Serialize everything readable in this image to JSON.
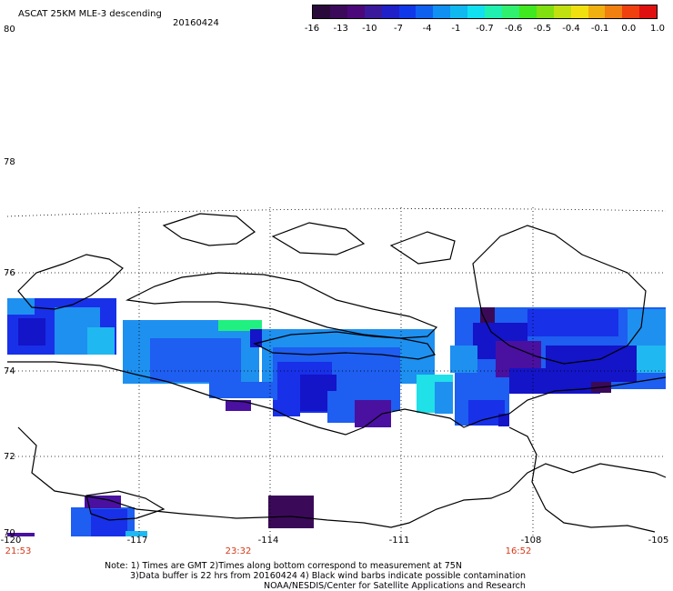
{
  "title": "ASCAT 25KM MLE-3 descending",
  "date": "20160424",
  "colorbar": {
    "colors": [
      "#2a0a3a",
      "#3c0a5a",
      "#4b087a",
      "#3a1a9a",
      "#2020c8",
      "#1038e8",
      "#1060f0",
      "#1090f0",
      "#10b8f0",
      "#10e0f0",
      "#20f0b0",
      "#30f070",
      "#40e820",
      "#80e010",
      "#c0e010",
      "#f0e010",
      "#f0b010",
      "#f08010",
      "#f04010",
      "#e01010"
    ],
    "tick_labels": [
      "-16",
      "-13",
      "-10",
      "-7",
      "-4",
      "-1",
      "-0.7",
      "-0.6",
      "-0.5",
      "-0.4",
      "-0.1",
      "0.0",
      "1.0"
    ]
  },
  "lat_labels": [
    "80",
    "78",
    "76",
    "74",
    "72",
    "70"
  ],
  "lon_labels": [
    "-120",
    "-117",
    "-114",
    "-111",
    "-108",
    "-105"
  ],
  "times": [
    "21:53",
    "23:32",
    "16:52"
  ],
  "notes": [
    "Note: 1) Times are GMT 2)Times along bottom correspond to measurement at 75N",
    "3)Data buffer is 22 hrs from 20160424 4) Black wind barbs indicate possible contamination",
    "NOAA/NESDIS/Center for Satellite Applications and Research"
  ]
}
